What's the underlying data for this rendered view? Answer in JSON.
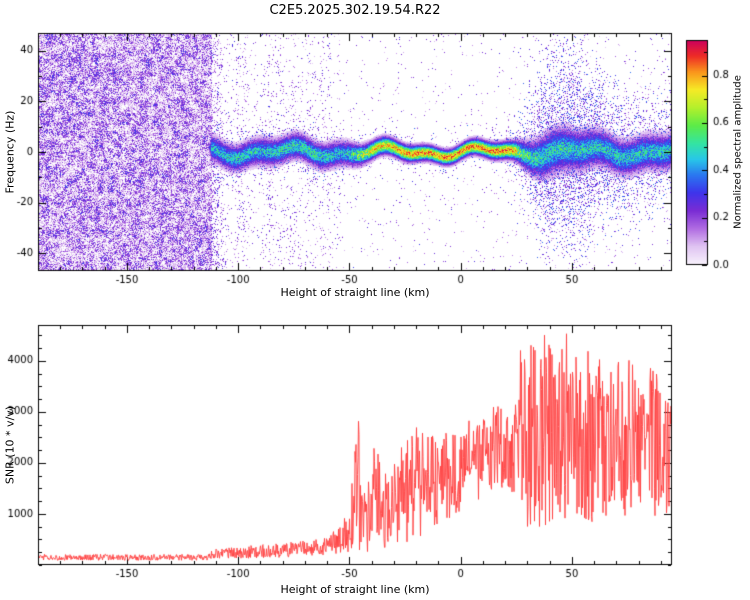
{
  "page": {
    "title": "C2E5.2025.302.19.54.R22"
  },
  "chart_data": [
    {
      "type": "heatmap",
      "title": "C2E5.2025.302.19.54.R22",
      "xlabel": "Height of straight line (km)",
      "ylabel": "Frequency (Hz)",
      "xlim": [
        -190,
        95
      ],
      "ylim": [
        -47,
        47
      ],
      "xticks": [
        -150,
        -100,
        -50,
        0,
        50
      ],
      "yticks": [
        -40,
        -20,
        0,
        20,
        40
      ],
      "x_minor_step": 10,
      "y_minor_step": 10,
      "grid": false,
      "colorbar": {
        "label": "Normalized spectral amplitude",
        "ticks": [
          0.0,
          0.2,
          0.4,
          0.6,
          0.8
        ],
        "vmax": 0.95,
        "colormap_stops": [
          [
            0.0,
            248,
            242,
            252
          ],
          [
            0.08,
            224,
            196,
            242
          ],
          [
            0.16,
            176,
            108,
            226
          ],
          [
            0.24,
            122,
            44,
            212
          ],
          [
            0.32,
            62,
            52,
            235
          ],
          [
            0.4,
            42,
            120,
            240
          ],
          [
            0.47,
            40,
            200,
            232
          ],
          [
            0.54,
            52,
            228,
            162
          ],
          [
            0.62,
            92,
            235,
            72
          ],
          [
            0.7,
            180,
            240,
            44
          ],
          [
            0.78,
            246,
            234,
            38
          ],
          [
            0.86,
            250,
            148,
            28
          ],
          [
            0.93,
            238,
            44,
            38
          ],
          [
            1.0,
            204,
            0,
            92
          ]
        ]
      },
      "speckle": {
        "dense_until": -112,
        "fade_until": -54,
        "dense": 0.88,
        "mid": 0.22,
        "sparse": 0.02
      },
      "center_wiggle": [
        1.6,
        7.0,
        1.0,
        3.1
      ],
      "band_points": [
        [
          -190,
          0,
          0,
          0,
          0
        ],
        [
          -114,
          0,
          0,
          0,
          0
        ],
        [
          -112,
          0.55,
          3,
          5,
          0.25
        ],
        [
          -100,
          0.6,
          3,
          5,
          0.25
        ],
        [
          -90,
          0.58,
          3.2,
          5,
          0.25
        ],
        [
          -80,
          0.62,
          3,
          5,
          0.2
        ],
        [
          -70,
          0.65,
          3,
          5,
          0.2
        ],
        [
          -60,
          0.6,
          3,
          5,
          0.2
        ],
        [
          -52,
          0.55,
          3,
          4,
          0.15
        ],
        [
          -45,
          0.78,
          2.4,
          4,
          0.15
        ],
        [
          -40,
          0.88,
          2.1,
          4,
          0.12
        ],
        [
          -30,
          0.9,
          2,
          4,
          0.12
        ],
        [
          -20,
          0.95,
          1.9,
          4,
          0.12
        ],
        [
          -10,
          0.95,
          1.8,
          4,
          0.12
        ],
        [
          0,
          0.96,
          1.8,
          4,
          0.12
        ],
        [
          10,
          0.95,
          1.9,
          4,
          0.12
        ],
        [
          20,
          0.96,
          2,
          5,
          0.15
        ],
        [
          24,
          0.9,
          2.2,
          6,
          0.2
        ],
        [
          28,
          0.72,
          3,
          9,
          0.3
        ],
        [
          33,
          0.65,
          4,
          14,
          0.35
        ],
        [
          38,
          0.6,
          5,
          18,
          0.4
        ],
        [
          45,
          0.62,
          5,
          21,
          0.42
        ],
        [
          52,
          0.6,
          4.6,
          20,
          0.4
        ],
        [
          60,
          0.6,
          4.2,
          16,
          0.35
        ],
        [
          68,
          0.6,
          4,
          14,
          0.3
        ],
        [
          76,
          0.6,
          4,
          13,
          0.3
        ],
        [
          84,
          0.6,
          4,
          12,
          0.28
        ],
        [
          95,
          0.6,
          4,
          11,
          0.28
        ]
      ]
    },
    {
      "type": "line",
      "xlabel": "Height of straight line (km)",
      "ylabel": "SNR (10 * v/v)",
      "xlim": [
        -190,
        95
      ],
      "ylim": [
        0,
        4700
      ],
      "xticks": [
        -150,
        -100,
        -50,
        0,
        50
      ],
      "yticks": [
        1000,
        2000,
        3000,
        4000
      ],
      "x_minor_step": 10,
      "y_minor_step": 250,
      "color": "#ff4040",
      "envelope": [
        [
          -190,
          90,
          210
        ],
        [
          -115,
          90,
          210
        ],
        [
          -110,
          120,
          320
        ],
        [
          -95,
          130,
          380
        ],
        [
          -80,
          150,
          430
        ],
        [
          -65,
          170,
          520
        ],
        [
          -55,
          200,
          700
        ],
        [
          -50,
          220,
          1100
        ],
        [
          -46,
          250,
          3050
        ],
        [
          -43,
          250,
          1500
        ],
        [
          -38,
          300,
          2600
        ],
        [
          -33,
          350,
          1700
        ],
        [
          -28,
          380,
          2300
        ],
        [
          -22,
          450,
          2700
        ],
        [
          -16,
          600,
          2900
        ],
        [
          -10,
          800,
          2400
        ],
        [
          -5,
          900,
          2700
        ],
        [
          0,
          1000,
          2500
        ],
        [
          4,
          1100,
          3100
        ],
        [
          8,
          1200,
          2700
        ],
        [
          12,
          1300,
          3000
        ],
        [
          16,
          1400,
          3300
        ],
        [
          20,
          1500,
          3100
        ],
        [
          24,
          1400,
          2900
        ],
        [
          27,
          800,
          4300
        ],
        [
          31,
          600,
          4600
        ],
        [
          35,
          700,
          4400
        ],
        [
          39,
          800,
          4600
        ],
        [
          44,
          700,
          4300
        ],
        [
          48,
          800,
          4600
        ],
        [
          53,
          900,
          4400
        ],
        [
          58,
          800,
          4200
        ],
        [
          63,
          900,
          4000
        ],
        [
          68,
          1000,
          3900
        ],
        [
          74,
          900,
          4100
        ],
        [
          80,
          1000,
          3800
        ],
        [
          86,
          900,
          3900
        ],
        [
          91,
          1000,
          3600
        ],
        [
          95,
          1000,
          3300
        ]
      ]
    }
  ]
}
